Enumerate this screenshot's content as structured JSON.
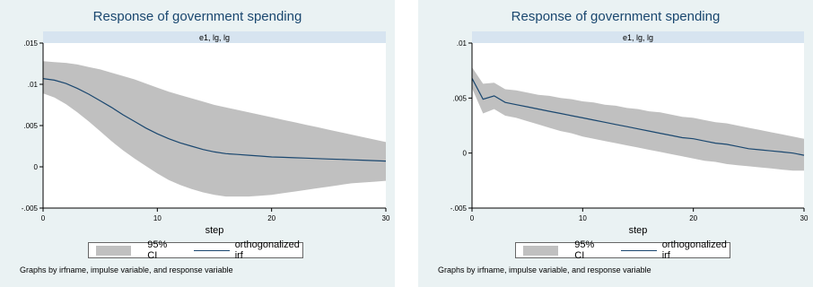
{
  "note": "Graphs by irfname, impulse variable, and response variable",
  "chart_data": [
    {
      "type": "line",
      "title": "Response of government spending",
      "subtitle": "e1, lg, lg",
      "xlabel": "step",
      "ylabel": "",
      "xlim": [
        0,
        30
      ],
      "ylim": [
        -0.005,
        0.015
      ],
      "xticks": [
        0,
        10,
        20,
        30
      ],
      "yticks": [
        -0.005,
        0,
        0.005,
        0.01,
        0.015
      ],
      "ytick_labels": [
        "-.005",
        "0",
        ".005",
        ".01",
        ".015"
      ],
      "grid": false,
      "legend": [
        "95% CI",
        "orthogonalized irf"
      ],
      "legend_position": "bottom",
      "colors": {
        "irf": "#1a476f",
        "ci": "#c0c0c0",
        "background": "#eaf2f3"
      },
      "x": [
        0,
        1,
        2,
        3,
        4,
        5,
        6,
        7,
        8,
        9,
        10,
        11,
        12,
        13,
        14,
        15,
        16,
        17,
        18,
        19,
        20,
        21,
        22,
        23,
        24,
        25,
        26,
        27,
        28,
        29,
        30
      ],
      "series": [
        {
          "name": "orthogonalized irf",
          "values": [
            0.0107,
            0.0105,
            0.0101,
            0.0095,
            0.0088,
            0.008,
            0.0072,
            0.0063,
            0.0055,
            0.0047,
            0.004,
            0.0034,
            0.0029,
            0.0025,
            0.0021,
            0.0018,
            0.0016,
            0.0015,
            0.0014,
            0.0013,
            0.0012,
            0.00115,
            0.0011,
            0.00105,
            0.001,
            0.00095,
            0.0009,
            0.00085,
            0.0008,
            0.00075,
            0.0007
          ]
        },
        {
          "name": "95% CI",
          "lower": [
            0.0089,
            0.0084,
            0.0076,
            0.0066,
            0.0055,
            0.0043,
            0.0031,
            0.002,
            0.001,
            0.0001,
            -0.0008,
            -0.0016,
            -0.0022,
            -0.0027,
            -0.0031,
            -0.0034,
            -0.0036,
            -0.0036,
            -0.0036,
            -0.0035,
            -0.0034,
            -0.0032,
            -0.003,
            -0.0028,
            -0.0026,
            -0.0024,
            -0.0022,
            -0.002,
            -0.0019,
            -0.0018,
            -0.0017
          ],
          "upper": [
            0.0128,
            0.0127,
            0.0126,
            0.0124,
            0.0121,
            0.0118,
            0.0114,
            0.011,
            0.0106,
            0.0101,
            0.0096,
            0.0091,
            0.0087,
            0.0083,
            0.0079,
            0.0075,
            0.0072,
            0.0069,
            0.0066,
            0.0063,
            0.006,
            0.0057,
            0.0054,
            0.0051,
            0.0048,
            0.0045,
            0.0042,
            0.0039,
            0.0036,
            0.0033,
            0.003
          ]
        }
      ]
    },
    {
      "type": "line",
      "title": "Response of government spending",
      "subtitle": "e1, lg, lg",
      "xlabel": "step",
      "ylabel": "",
      "xlim": [
        0,
        30
      ],
      "ylim": [
        -0.005,
        0.01
      ],
      "xticks": [
        0,
        10,
        20,
        30
      ],
      "yticks": [
        -0.005,
        0,
        0.005,
        0.01
      ],
      "ytick_labels": [
        "-.005",
        "0",
        ".005",
        ".01"
      ],
      "grid": false,
      "legend": [
        "95% CI",
        "orthogonalized irf"
      ],
      "legend_position": "bottom",
      "colors": {
        "irf": "#1a476f",
        "ci": "#c0c0c0",
        "background": "#eaf2f3"
      },
      "x": [
        0,
        1,
        2,
        3,
        4,
        5,
        6,
        7,
        8,
        9,
        10,
        11,
        12,
        13,
        14,
        15,
        16,
        17,
        18,
        19,
        20,
        21,
        22,
        23,
        24,
        25,
        26,
        27,
        28,
        29,
        30
      ],
      "series": [
        {
          "name": "orthogonalized irf",
          "values": [
            0.0068,
            0.0049,
            0.0052,
            0.0046,
            0.0044,
            0.0042,
            0.004,
            0.0038,
            0.0036,
            0.0034,
            0.0032,
            0.003,
            0.0028,
            0.0026,
            0.0024,
            0.0022,
            0.002,
            0.0018,
            0.0016,
            0.0014,
            0.0013,
            0.0011,
            0.0009,
            0.0008,
            0.0006,
            0.0004,
            0.0003,
            0.0002,
            0.0001,
            0.0,
            -0.0002
          ]
        },
        {
          "name": "95% CI",
          "lower": [
            0.0059,
            0.0036,
            0.004,
            0.0034,
            0.0032,
            0.0029,
            0.0026,
            0.0023,
            0.002,
            0.0018,
            0.0015,
            0.0013,
            0.0011,
            0.0009,
            0.0007,
            0.0005,
            0.0003,
            0.0001,
            -0.0001,
            -0.0003,
            -0.0005,
            -0.0007,
            -0.0008,
            -0.001,
            -0.0011,
            -0.0012,
            -0.0013,
            -0.0014,
            -0.0015,
            -0.0016,
            -0.0016
          ],
          "upper": [
            0.0078,
            0.0063,
            0.0064,
            0.0058,
            0.0057,
            0.0055,
            0.0053,
            0.0052,
            0.005,
            0.0049,
            0.0047,
            0.0046,
            0.0044,
            0.0043,
            0.0041,
            0.004,
            0.0038,
            0.0037,
            0.0035,
            0.0033,
            0.0032,
            0.003,
            0.0028,
            0.0027,
            0.0025,
            0.0023,
            0.0021,
            0.0019,
            0.0017,
            0.0015,
            0.0013
          ]
        }
      ]
    }
  ]
}
